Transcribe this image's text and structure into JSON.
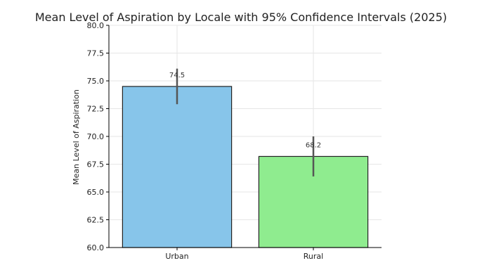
{
  "chart_data": {
    "type": "bar",
    "title": "Mean Level of Aspiration by Locale with 95% Confidence Intervals (2025)",
    "xlabel": "",
    "ylabel": "Mean Level of Aspiration",
    "categories": [
      "Urban",
      "Rural"
    ],
    "values": [
      74.5,
      68.2
    ],
    "ci_low": [
      72.9,
      66.4
    ],
    "ci_high": [
      76.1,
      70.0
    ],
    "data_labels": [
      "74.5",
      "68.2"
    ],
    "bar_colors": [
      "#87c5ea",
      "#8fec8f"
    ],
    "ylim": [
      60.0,
      80.0
    ],
    "yticks": [
      "60.0",
      "62.5",
      "65.0",
      "67.5",
      "70.0",
      "72.5",
      "75.0",
      "77.5",
      "80.0"
    ],
    "grid": true,
    "legend": "none"
  }
}
